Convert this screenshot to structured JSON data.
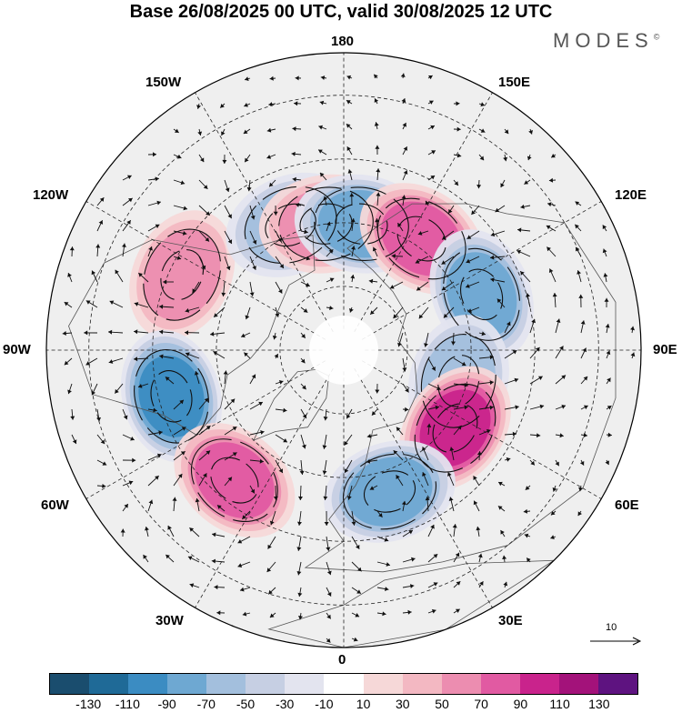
{
  "title": "Base 26/08/2025 00 UTC, valid 30/08/2025 12 UTC",
  "brand": {
    "name": "MODES",
    "mark": "©"
  },
  "longitude_labels": {
    "north": "180",
    "north_east": "150E",
    "east_upper": "120E",
    "east": "90E",
    "east_lower": "60E",
    "south_east": "30E",
    "south": "0",
    "south_west": "30W",
    "west_lower": "60W",
    "west": "90W",
    "west_upper": "120W",
    "north_west": "150W"
  },
  "vector_scale": {
    "label": "10"
  },
  "colorbar": {
    "colors": [
      "#1a4d6e",
      "#1f6a97",
      "#3b8cc2",
      "#6ea8d2",
      "#a3bfdd",
      "#c6cfe3",
      "#e3e4ef",
      "#ffffff",
      "#f6d8d8",
      "#f3b8c2",
      "#ec8db0",
      "#e15aa2",
      "#c9238c",
      "#a3127a",
      "#5e1380"
    ],
    "ticks": [
      "-130",
      "-110",
      "-90",
      "-70",
      "-50",
      "-30",
      "-10",
      "10",
      "30",
      "50",
      "70",
      "90",
      "110",
      "130"
    ]
  },
  "map": {
    "land_color": "#ffffff",
    "background": "#f0f0f0",
    "anomaly_centers": [
      {
        "name": "pos-120w",
        "sign": "positive",
        "lon": -115,
        "lat": 48,
        "amp": 60
      },
      {
        "name": "neg-150w",
        "sign": "negative",
        "lon": -157,
        "lat": 58,
        "amp": 70
      },
      {
        "name": "pos-170w",
        "sign": "positive",
        "lon": -172,
        "lat": 60,
        "amp": 60
      },
      {
        "name": "neg-170e",
        "sign": "negative",
        "lon": 172,
        "lat": 60,
        "amp": 90
      },
      {
        "name": "pos-145e",
        "sign": "positive",
        "lon": 145,
        "lat": 58,
        "amp": 90
      },
      {
        "name": "neg-115e",
        "sign": "negative",
        "lon": 112,
        "lat": 55,
        "amp": 80
      },
      {
        "name": "neg-80e",
        "sign": "negative",
        "lon": 75,
        "lat": 62,
        "amp": 60
      },
      {
        "name": "pos-60e",
        "sign": "positive",
        "lon": 55,
        "lat": 58,
        "amp": 110
      },
      {
        "name": "neg-15e",
        "sign": "negative",
        "lon": 18,
        "lat": 55,
        "amp": 80
      },
      {
        "name": "neg-80w",
        "sign": "negative",
        "lon": -75,
        "lat": 48,
        "amp": 100
      },
      {
        "name": "pos-40w",
        "sign": "positive",
        "lon": -40,
        "lat": 50,
        "amp": 80
      }
    ]
  }
}
